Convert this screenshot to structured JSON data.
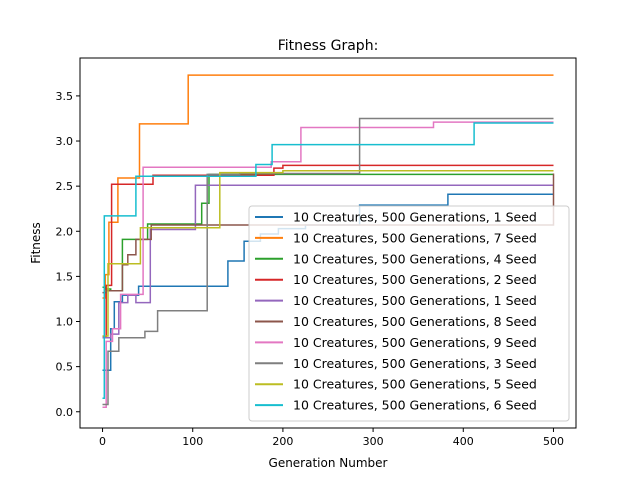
{
  "chart_data": {
    "type": "line",
    "title": "Fitness Graph:",
    "xlabel": "Generation Number",
    "ylabel": "Fitness",
    "xlim": [
      -25,
      525
    ],
    "ylim": [
      -0.18,
      3.92
    ],
    "xticks": [
      0,
      100,
      200,
      300,
      400,
      500
    ],
    "yticks": [
      0.0,
      0.5,
      1.0,
      1.5,
      2.0,
      2.5,
      3.0,
      3.5
    ],
    "grid": false,
    "legend_position": "lower-right",
    "series": [
      {
        "name": "10 Creatures, 500 Generations, 1 Seed",
        "color": "#1f77b4",
        "x": [
          0,
          3,
          9,
          13,
          22,
          40,
          139,
          157,
          175,
          195,
          225,
          285,
          383,
          500
        ],
        "y": [
          0.46,
          0.46,
          0.92,
          1.22,
          1.29,
          1.39,
          1.67,
          1.89,
          1.97,
          2.03,
          2.07,
          2.29,
          2.41,
          2.41
        ]
      },
      {
        "name": "10 Creatures, 500 Generations, 7 Seed",
        "color": "#ff7f0e",
        "x": [
          0,
          3,
          7,
          17,
          41,
          95,
          500
        ],
        "y": [
          1.26,
          1.52,
          2.1,
          2.59,
          3.19,
          3.73,
          3.73
        ]
      },
      {
        "name": "10 Creatures, 500 Generations, 4 Seed",
        "color": "#2ca02c",
        "x": [
          0,
          3,
          9,
          22,
          50,
          110,
          118,
          500
        ],
        "y": [
          1.38,
          1.36,
          1.34,
          1.91,
          2.08,
          2.31,
          2.63,
          2.63
        ]
      },
      {
        "name": "10 Creatures, 500 Generations, 2 Seed",
        "color": "#d62728",
        "x": [
          0,
          4,
          10,
          56,
          190,
          200,
          500
        ],
        "y": [
          0.83,
          1.4,
          2.52,
          2.62,
          2.7,
          2.73,
          2.73
        ]
      },
      {
        "name": "10 Creatures, 500 Generations, 1 Seed",
        "color": "#9467bd",
        "x": [
          0,
          9,
          18,
          28,
          37,
          53,
          103,
          500
        ],
        "y": [
          0.82,
          0.86,
          1.21,
          1.29,
          1.21,
          2.02,
          2.51,
          2.51
        ]
      },
      {
        "name": "10 Creatures, 500 Generations, 8 Seed",
        "color": "#8c564b",
        "x": [
          0,
          4,
          22,
          28,
          37,
          54,
          500
        ],
        "y": [
          1.32,
          1.34,
          1.63,
          1.74,
          1.91,
          2.07,
          2.64
        ]
      },
      {
        "name": "10 Creatures, 500 Generations, 9 Seed",
        "color": "#e377c2",
        "x": [
          0,
          4,
          11,
          20,
          45,
          187,
          220,
          367,
          500
        ],
        "y": [
          0.05,
          0.78,
          0.92,
          1.3,
          2.71,
          2.77,
          3.15,
          3.21,
          3.21
        ]
      },
      {
        "name": "10 Creatures, 500 Generations, 3 Seed",
        "color": "#7f7f7f",
        "x": [
          0,
          6,
          18,
          47,
          61,
          116,
          152,
          285,
          500
        ],
        "y": [
          0.08,
          0.67,
          0.82,
          0.89,
          1.12,
          2.63,
          2.64,
          3.25,
          3.25
        ]
      },
      {
        "name": "10 Creatures, 500 Generations, 5 Seed",
        "color": "#bcbd22",
        "x": [
          0,
          6,
          42,
          130,
          200,
          500
        ],
        "y": [
          0.84,
          1.64,
          2.04,
          2.65,
          2.67,
          2.67
        ]
      },
      {
        "name": "10 Creatures, 500 Generations, 6 Seed",
        "color": "#17becf",
        "x": [
          0,
          2,
          37,
          170,
          188,
          412,
          500
        ],
        "y": [
          0.15,
          2.17,
          2.61,
          2.74,
          2.96,
          3.2,
          3.2
        ]
      }
    ]
  }
}
